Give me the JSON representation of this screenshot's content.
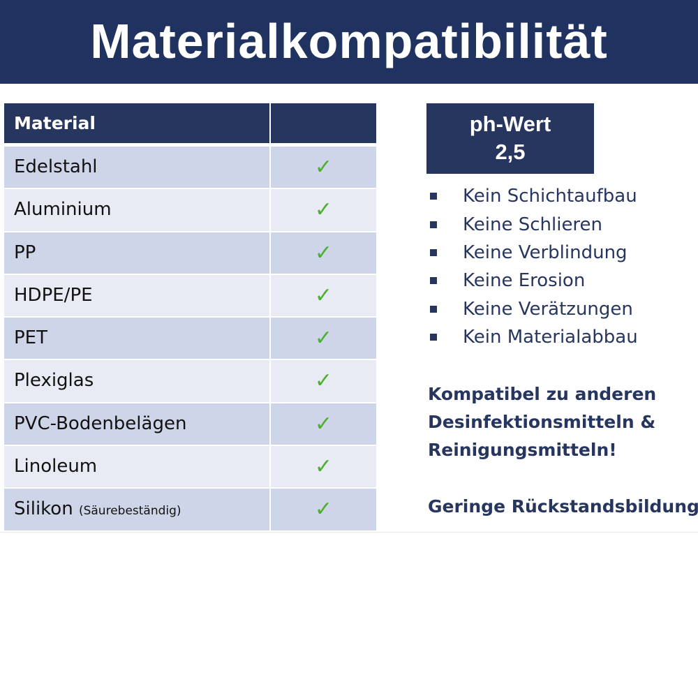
{
  "title": "Materialkompatibilität",
  "table": {
    "header": [
      "Material",
      ""
    ],
    "rows": [
      {
        "material": "Edelstahl",
        "note": "",
        "check": "✓"
      },
      {
        "material": "Aluminium",
        "note": "",
        "check": "✓"
      },
      {
        "material": "PP",
        "note": "",
        "check": "✓"
      },
      {
        "material": "HDPE/PE",
        "note": "",
        "check": "✓"
      },
      {
        "material": "PET",
        "note": "",
        "check": "✓"
      },
      {
        "material": "Plexiglas",
        "note": "",
        "check": "✓"
      },
      {
        "material": "PVC-Bodenbelägen",
        "note": "",
        "check": "✓"
      },
      {
        "material": "Linoleum",
        "note": "",
        "check": "✓"
      },
      {
        "material": "Silikon",
        "note": "(Säurebeständig)",
        "check": "✓"
      }
    ]
  },
  "ph": {
    "label": "ph-Wert",
    "value": "2,5"
  },
  "bullets": [
    "Kein Schichtaufbau",
    "Keine Schlieren",
    "Keine Verblindung",
    "Keine Erosion",
    "Keine Verätzungen",
    "Kein Materialabbau"
  ],
  "notes": {
    "compat": [
      "Kompatibel zu anderen",
      "Desinfektionsmitteln &",
      "Reinigungsmitteln!"
    ],
    "residue": "Geringe Rückstandsbildung"
  },
  "colors": {
    "navy": "#203260",
    "row_odd": "#cfd5e8",
    "row_even": "#e8ebf4",
    "check": "#4caf30"
  }
}
